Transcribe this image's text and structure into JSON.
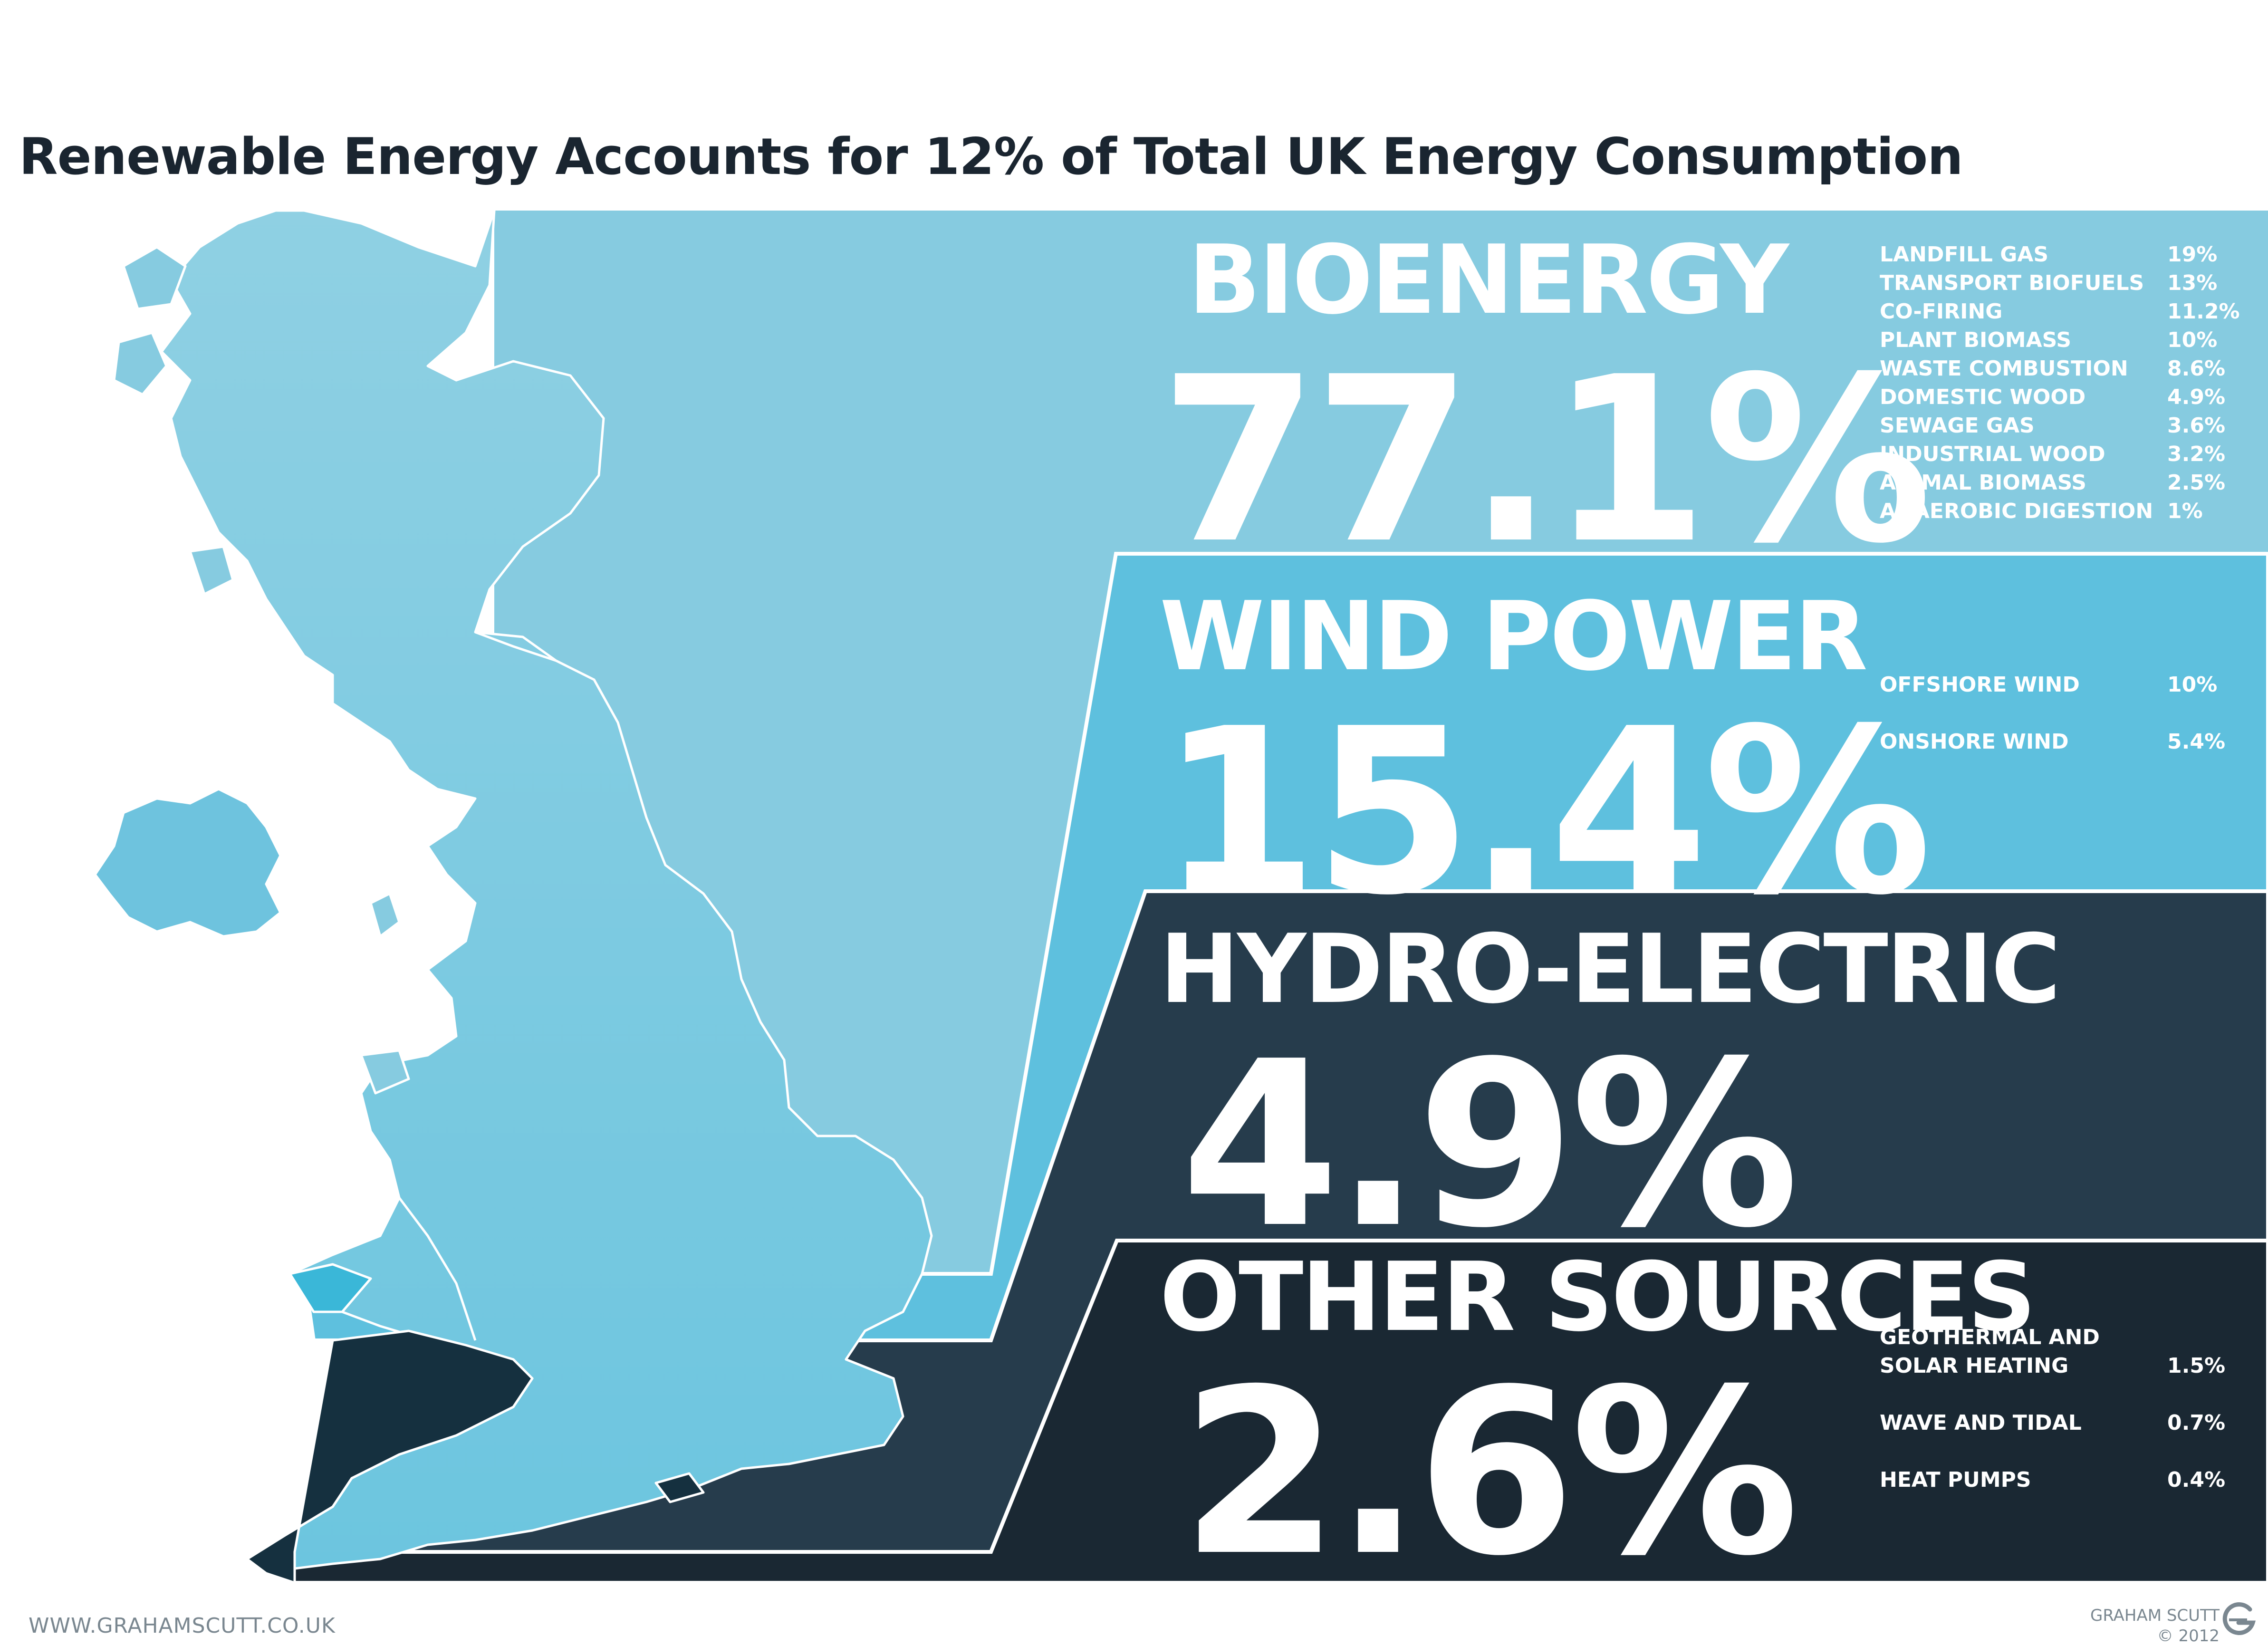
{
  "title": "Renewable Energy Accounts for 12% of Total UK Energy Consumption",
  "colors": {
    "bioenergy": "#86cbe0",
    "wind": "#5ec0de",
    "wind_map": "#3ab7d8",
    "hydro": "#263c4c",
    "other": "#1a2833",
    "other_map": "#15303f",
    "text": "#ffffff",
    "title": "#1a2530"
  },
  "categories": [
    {
      "name": "BIOENERGY",
      "percent": "77.1%",
      "value": 77.1,
      "breakdown": [
        {
          "label": "LANDFILL GAS",
          "value": "19%"
        },
        {
          "label": "TRANSPORT BIOFUELS",
          "value": "13%"
        },
        {
          "label": "CO-FIRING",
          "value": "11.2%"
        },
        {
          "label": "PLANT BIOMASS",
          "value": "10%"
        },
        {
          "label": "WASTE COMBUSTION",
          "value": "8.6%"
        },
        {
          "label": "DOMESTIC WOOD",
          "value": "4.9%"
        },
        {
          "label": "SEWAGE GAS",
          "value": "3.6%"
        },
        {
          "label": "INDUSTRIAL WOOD",
          "value": "3.2%"
        },
        {
          "label": "ANIMAL BIOMASS",
          "value": "2.5%"
        },
        {
          "label": "ANAEROBIC DIGESTION",
          "value": "1%"
        }
      ]
    },
    {
      "name": "WIND POWER",
      "percent": "15.4%",
      "value": 15.4,
      "breakdown": [
        {
          "label": "OFFSHORE WIND",
          "value": "10%"
        },
        {
          "label": "ONSHORE WIND",
          "value": "5.4%"
        }
      ]
    },
    {
      "name": "HYDRO-ELECTRIC",
      "percent": "4.9%",
      "value": 4.9,
      "breakdown": []
    },
    {
      "name": "OTHER SOURCES",
      "percent": "2.6%",
      "value": 2.6,
      "breakdown": [
        {
          "label": "GEOTHERMAL AND",
          "label2": "SOLAR HEATING",
          "value": "1.5%"
        },
        {
          "label": "WAVE AND TIDAL",
          "value": "0.7%"
        },
        {
          "label": "HEAT PUMPS",
          "value": "0.4%"
        }
      ]
    }
  ],
  "footer": {
    "url": "WWW.GRAHAMSCUTT.CO.UK",
    "credit_name": "GRAHAM SCUTT",
    "credit_year": "© 2012"
  }
}
